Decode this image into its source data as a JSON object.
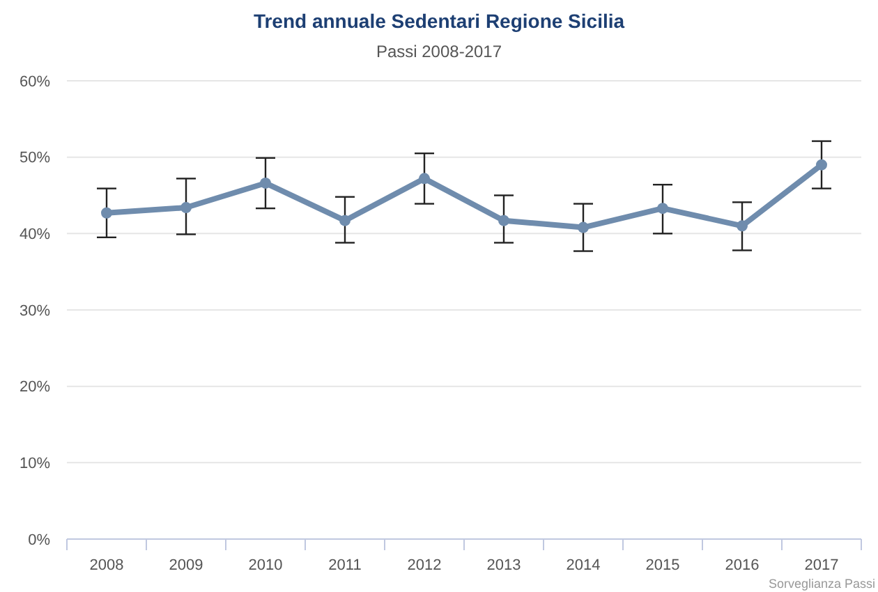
{
  "chart_data": {
    "type": "line",
    "title": "Trend annuale Sedentari Regione Sicilia",
    "subtitle": "Passi 2008-2017",
    "categories": [
      "2008",
      "2009",
      "2010",
      "2011",
      "2012",
      "2013",
      "2014",
      "2015",
      "2016",
      "2017"
    ],
    "series": [
      {
        "color": "#6f8cad",
        "values": [
          42.7,
          43.4,
          46.6,
          41.7,
          47.2,
          41.7,
          40.8,
          43.3,
          41.0,
          49.0
        ],
        "errors": [
          [
            39.5,
            45.9
          ],
          [
            39.9,
            47.2
          ],
          [
            43.3,
            49.9
          ],
          [
            38.8,
            44.8
          ],
          [
            43.9,
            50.5
          ],
          [
            38.8,
            45.0
          ],
          [
            37.7,
            43.9
          ],
          [
            40.0,
            46.4
          ],
          [
            37.8,
            44.1
          ],
          [
            45.9,
            52.1
          ]
        ]
      }
    ],
    "ylim": [
      0,
      60
    ],
    "yticks": [
      {
        "value": 0,
        "label": "0%"
      },
      {
        "value": 10,
        "label": "10%"
      },
      {
        "value": 20,
        "label": "20%"
      },
      {
        "value": 30,
        "label": "30%"
      },
      {
        "value": 40,
        "label": "40%"
      },
      {
        "value": 50,
        "label": "50%"
      },
      {
        "value": 60,
        "label": "60%"
      }
    ],
    "grid": "y",
    "marker": "circle",
    "line_style": "solid",
    "annotations": [
      "Sorveglianza Passi"
    ]
  }
}
